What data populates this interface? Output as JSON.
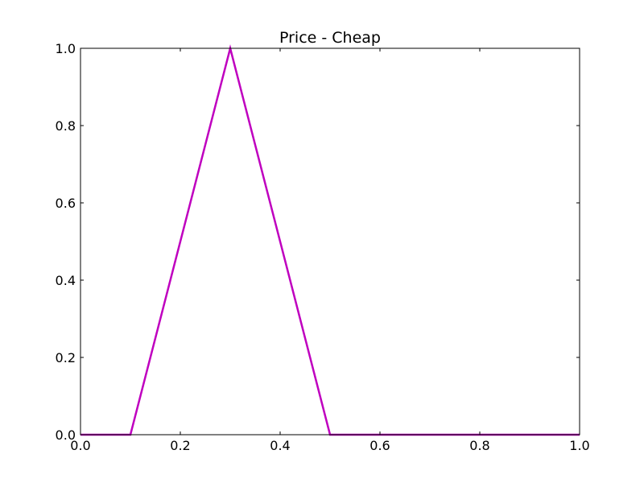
{
  "chart_data": {
    "type": "line",
    "title": "Price - Cheap",
    "xlabel": "",
    "ylabel": "",
    "xlim": [
      0.0,
      1.0
    ],
    "ylim": [
      0.0,
      1.0
    ],
    "x_ticks": [
      0.0,
      0.2,
      0.4,
      0.6,
      0.8,
      1.0
    ],
    "y_ticks": [
      0.0,
      0.2,
      0.4,
      0.6,
      0.8,
      1.0
    ],
    "x_tick_labels": [
      "0.0",
      "0.2",
      "0.4",
      "0.6",
      "0.8",
      "1.0"
    ],
    "y_tick_labels": [
      "0.0",
      "0.2",
      "0.4",
      "0.6",
      "0.8",
      "1.0"
    ],
    "grid": false,
    "legend": "none",
    "series": [
      {
        "color": "#bf00bf",
        "x": [
          0.0,
          0.1,
          0.3,
          0.5,
          1.0
        ],
        "y": [
          0.0,
          0.0,
          1.0,
          0.0,
          0.0
        ]
      }
    ]
  }
}
